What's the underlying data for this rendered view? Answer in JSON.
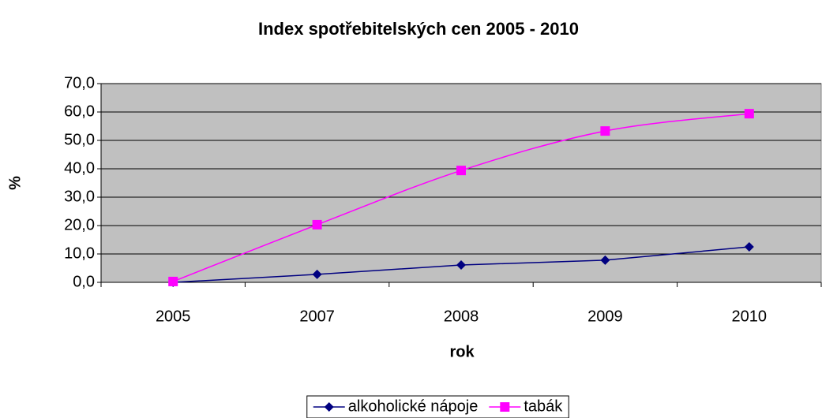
{
  "chart_data": {
    "type": "line",
    "title": "Index spotřebitelských cen 2005 - 2010",
    "x_label": "rok",
    "y_label": "%",
    "categories": [
      "2005",
      "2007",
      "2008",
      "2009",
      "2010"
    ],
    "series": [
      {
        "name": "alkoholické nápoje",
        "color": "#000080",
        "marker": "diamond",
        "smooth": false,
        "values": [
          0,
          2.8,
          6.1,
          7.8,
          12.5
        ]
      },
      {
        "name": "tabák",
        "color": "#ff00ff",
        "marker": "square",
        "smooth": true,
        "values": [
          0.3,
          20.3,
          39.4,
          53.3,
          59.4
        ]
      }
    ],
    "ylim": [
      0,
      70
    ],
    "yticks": [
      {
        "value": 0,
        "label": "0,0"
      },
      {
        "value": 10,
        "label": "10,0"
      },
      {
        "value": 20,
        "label": "20,0"
      },
      {
        "value": 30,
        "label": "30,0"
      },
      {
        "value": 40,
        "label": "40,0"
      },
      {
        "value": 50,
        "label": "50,0"
      },
      {
        "value": 60,
        "label": "60,0"
      },
      {
        "value": 70,
        "label": "70,0"
      }
    ],
    "grid": true,
    "legend": "bottom",
    "plot_background": "#c0c0c0"
  }
}
